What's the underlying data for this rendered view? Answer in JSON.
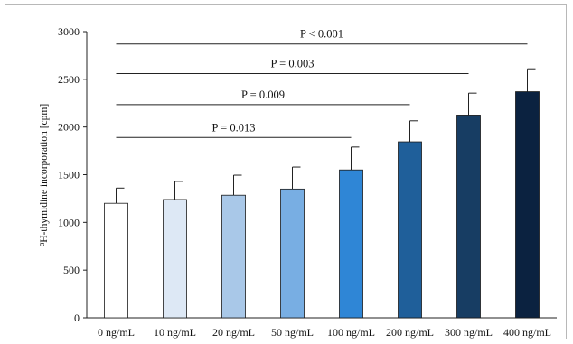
{
  "chart_data": {
    "type": "bar",
    "ylabel": "³H-thymidine incorporation [cpm]",
    "ylim": [
      0,
      3000
    ],
    "yticks": [
      0,
      500,
      1000,
      1500,
      2000,
      2500,
      3000
    ],
    "grid": false,
    "legend": "none",
    "categories": [
      "0 ng/mL",
      "10 ng/mL",
      "20 ng/mL",
      "50 ng/mL",
      "100 ng/mL",
      "200 ng/mL",
      "300 ng/mL",
      "400 ng/mL"
    ],
    "values": [
      1200,
      1240,
      1285,
      1350,
      1550,
      1845,
      2125,
      2370
    ],
    "errors": [
      160,
      190,
      210,
      230,
      240,
      220,
      230,
      240
    ],
    "colors": [
      "#ffffff",
      "#dde8f5",
      "#a9c8e8",
      "#78aee3",
      "#2f86d6",
      "#1f5f9a",
      "#173d63",
      "#0b2240"
    ],
    "annotations": [
      {
        "label": "P < 0.001",
        "from": "0 ng/mL",
        "to": "400 ng/mL",
        "y": 2870
      },
      {
        "label": "P = 0.003",
        "from": "0 ng/mL",
        "to": "300 ng/mL",
        "y": 2560
      },
      {
        "label": "P = 0.009",
        "from": "0 ng/mL",
        "to": "200 ng/mL",
        "y": 2235
      },
      {
        "label": "P = 0.013",
        "from": "0 ng/mL",
        "to": "100 ng/mL",
        "y": 1890
      }
    ]
  }
}
